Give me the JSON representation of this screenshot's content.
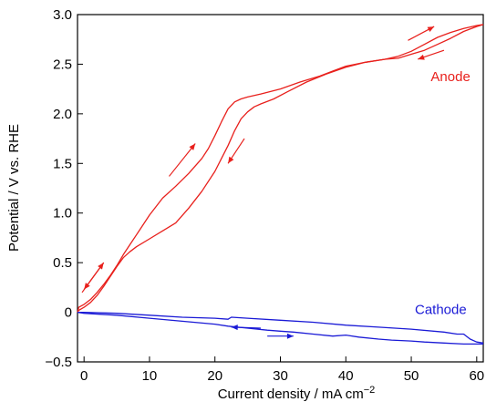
{
  "chart_data": {
    "type": "line",
    "title": "",
    "xlabel": "Current density  /  mA cm",
    "xlabel_superscript": "−2",
    "ylabel": "Potential  /  V vs. RHE",
    "xlim": [
      -1,
      61
    ],
    "ylim": [
      -0.5,
      3.0
    ],
    "xticks": [
      0,
      10,
      20,
      30,
      40,
      50,
      60
    ],
    "xtick_labels": [
      "0",
      "10",
      "20",
      "30",
      "40",
      "50",
      "60"
    ],
    "yticks": [
      -0.5,
      0,
      0.5,
      1.0,
      1.5,
      2.0,
      2.5,
      3.0
    ],
    "ytick_labels": [
      "−0.5",
      "0",
      "0.5",
      "1.0",
      "1.5",
      "2.0",
      "2.5",
      "3.0"
    ],
    "grid": false,
    "legend": "none",
    "series": [
      {
        "name": "Anode",
        "color": "#e8201c",
        "x": [
          -1,
          -0.8,
          0,
          1,
          2,
          3,
          4,
          5,
          6,
          7,
          8,
          10,
          12,
          14,
          16,
          18,
          19,
          20,
          21,
          22,
          23,
          24,
          25,
          27,
          30,
          33,
          36,
          38,
          40,
          43,
          46,
          48,
          50,
          52,
          54,
          56,
          58,
          60,
          61
        ],
        "y": [
          0.0,
          0.05,
          0.08,
          0.13,
          0.2,
          0.28,
          0.37,
          0.47,
          0.58,
          0.68,
          0.78,
          0.98,
          1.15,
          1.27,
          1.4,
          1.55,
          1.65,
          1.78,
          1.92,
          2.05,
          2.12,
          2.15,
          2.17,
          2.2,
          2.25,
          2.32,
          2.38,
          2.43,
          2.48,
          2.52,
          2.55,
          2.56,
          2.6,
          2.64,
          2.7,
          2.76,
          2.83,
          2.88,
          2.9
        ]
      },
      {
        "name": "Anode",
        "color": "#e8201c",
        "x": [
          61,
          60,
          58,
          56,
          54,
          52,
          50,
          48,
          46,
          43,
          40,
          37,
          34,
          31,
          29,
          27,
          26,
          25,
          24,
          23,
          22,
          21,
          20,
          18,
          16,
          14,
          12,
          10,
          8,
          7,
          6,
          5,
          4,
          3,
          2,
          1,
          0,
          -0.8,
          -1
        ],
        "y": [
          2.9,
          2.89,
          2.86,
          2.82,
          2.77,
          2.7,
          2.63,
          2.58,
          2.55,
          2.52,
          2.47,
          2.4,
          2.32,
          2.22,
          2.15,
          2.1,
          2.07,
          2.02,
          1.95,
          1.83,
          1.68,
          1.55,
          1.42,
          1.22,
          1.05,
          0.9,
          0.82,
          0.74,
          0.66,
          0.61,
          0.55,
          0.46,
          0.36,
          0.26,
          0.17,
          0.1,
          0.05,
          0.02,
          0.0
        ]
      },
      {
        "name": "Cathode",
        "color": "#1a1ad6",
        "x": [
          -1,
          0,
          5,
          10,
          15,
          20,
          22,
          22.5,
          25,
          30,
          35,
          40,
          45,
          50,
          55,
          57,
          58,
          59,
          60,
          61
        ],
        "y": [
          0.0,
          0.0,
          -0.01,
          -0.03,
          -0.05,
          -0.06,
          -0.07,
          -0.05,
          -0.06,
          -0.08,
          -0.1,
          -0.13,
          -0.15,
          -0.17,
          -0.2,
          -0.22,
          -0.22,
          -0.27,
          -0.3,
          -0.31
        ]
      },
      {
        "name": "Cathode",
        "color": "#1a1ad6",
        "x": [
          61,
          60,
          58,
          55,
          52,
          50,
          47,
          45,
          42,
          40,
          38,
          35,
          32,
          30,
          28,
          25,
          22,
          20,
          15,
          10,
          5,
          0,
          -1
        ],
        "y": [
          -0.32,
          -0.32,
          -0.32,
          -0.31,
          -0.3,
          -0.29,
          -0.28,
          -0.27,
          -0.25,
          -0.23,
          -0.24,
          -0.22,
          -0.2,
          -0.19,
          -0.18,
          -0.16,
          -0.14,
          -0.12,
          -0.09,
          -0.06,
          -0.03,
          -0.01,
          0.0
        ]
      }
    ],
    "annotations": [
      {
        "text": "Anode",
        "x": 56,
        "y": 2.33,
        "color": "#e8201c"
      },
      {
        "text": "Cathode",
        "x": 54.5,
        "y": -0.02,
        "color": "#1a1ad6"
      }
    ],
    "arrows": [
      {
        "color": "#e8201c",
        "from": [
          -0.3,
          0.2
        ],
        "to": [
          3,
          0.5
        ]
      },
      {
        "color": "#e8201c",
        "from": [
          3,
          0.5
        ],
        "to": [
          0,
          0.23
        ]
      },
      {
        "color": "#e8201c",
        "from": [
          13,
          1.37
        ],
        "to": [
          17,
          1.7
        ]
      },
      {
        "color": "#e8201c",
        "from": [
          24.5,
          1.75
        ],
        "to": [
          22,
          1.5
        ]
      },
      {
        "color": "#e8201c",
        "from": [
          49.5,
          2.74
        ],
        "to": [
          53.5,
          2.88
        ]
      },
      {
        "color": "#e8201c",
        "from": [
          55,
          2.64
        ],
        "to": [
          51,
          2.55
        ]
      },
      {
        "color": "#1a1ad6",
        "from": [
          27,
          -0.16
        ],
        "to": [
          22.5,
          -0.15
        ]
      },
      {
        "color": "#1a1ad6",
        "from": [
          28,
          -0.24
        ],
        "to": [
          32,
          -0.24
        ]
      }
    ]
  }
}
